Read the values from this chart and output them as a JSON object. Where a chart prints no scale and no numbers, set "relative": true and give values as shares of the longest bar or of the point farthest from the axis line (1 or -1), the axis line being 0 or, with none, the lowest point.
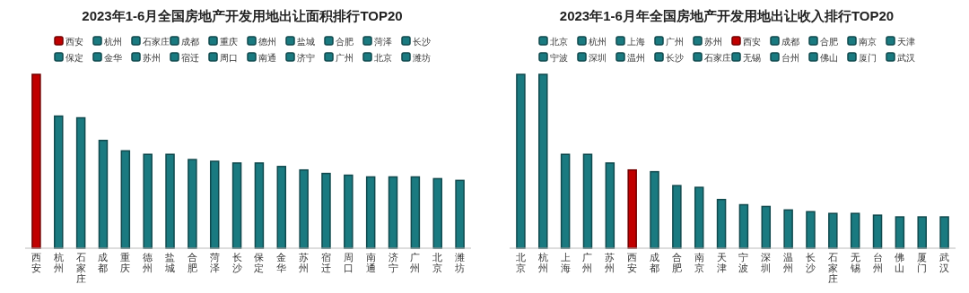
{
  "chart_data": [
    {
      "type": "bar",
      "title": "2023年1-6月全国房地产开发用地出让面积排行TOP20",
      "relative": true,
      "legend": "top",
      "stacked": true,
      "categories": [
        "西安",
        "杭州",
        "石家庄",
        "成都",
        "重庆",
        "德州",
        "盐城",
        "合肥",
        "菏泽",
        "长沙",
        "保定",
        "金华",
        "苏州",
        "宿迁",
        "周口",
        "南通",
        "济宁",
        "广州",
        "北京",
        "潍坊"
      ],
      "series": [
        {
          "name": "西安",
          "color": "#c00000",
          "values": [
            1,
            null,
            null,
            null,
            null,
            null,
            null,
            null,
            null,
            null,
            null,
            null,
            null,
            null,
            null,
            null,
            null,
            null,
            null,
            null
          ]
        },
        {
          "name": "杭州",
          "color": "#1a7a80",
          "values": [
            null,
            0.76,
            null,
            null,
            null,
            null,
            null,
            null,
            null,
            null,
            null,
            null,
            null,
            null,
            null,
            null,
            null,
            null,
            null,
            null
          ]
        },
        {
          "name": "石家庄",
          "color": "#1a7a80",
          "values": [
            null,
            null,
            0.75,
            null,
            null,
            null,
            null,
            null,
            null,
            null,
            null,
            null,
            null,
            null,
            null,
            null,
            null,
            null,
            null,
            null
          ]
        },
        {
          "name": "成都",
          "color": "#1a7a80",
          "values": [
            null,
            null,
            null,
            0.62,
            null,
            null,
            null,
            null,
            null,
            null,
            null,
            null,
            null,
            null,
            null,
            null,
            null,
            null,
            null,
            null
          ]
        },
        {
          "name": "重庆",
          "color": "#1a7a80",
          "values": [
            null,
            null,
            null,
            null,
            0.56,
            null,
            null,
            null,
            null,
            null,
            null,
            null,
            null,
            null,
            null,
            null,
            null,
            null,
            null,
            null
          ]
        },
        {
          "name": "德州",
          "color": "#1a7a80",
          "values": [
            null,
            null,
            null,
            null,
            null,
            0.54,
            null,
            null,
            null,
            null,
            null,
            null,
            null,
            null,
            null,
            null,
            null,
            null,
            null,
            null
          ]
        },
        {
          "name": "盐城",
          "color": "#1a7a80",
          "values": [
            null,
            null,
            null,
            null,
            null,
            null,
            0.54,
            null,
            null,
            null,
            null,
            null,
            null,
            null,
            null,
            null,
            null,
            null,
            null,
            null
          ]
        },
        {
          "name": "合肥",
          "color": "#1a7a80",
          "values": [
            null,
            null,
            null,
            null,
            null,
            null,
            null,
            0.51,
            null,
            null,
            null,
            null,
            null,
            null,
            null,
            null,
            null,
            null,
            null,
            null
          ]
        },
        {
          "name": "菏泽",
          "color": "#1a7a80",
          "values": [
            null,
            null,
            null,
            null,
            null,
            null,
            null,
            null,
            0.5,
            null,
            null,
            null,
            null,
            null,
            null,
            null,
            null,
            null,
            null,
            null
          ]
        },
        {
          "name": "长沙",
          "color": "#1a7a80",
          "values": [
            null,
            null,
            null,
            null,
            null,
            null,
            null,
            null,
            null,
            0.49,
            null,
            null,
            null,
            null,
            null,
            null,
            null,
            null,
            null,
            null
          ]
        },
        {
          "name": "保定",
          "color": "#1a7a80",
          "values": [
            null,
            null,
            null,
            null,
            null,
            null,
            null,
            null,
            null,
            null,
            0.49,
            null,
            null,
            null,
            null,
            null,
            null,
            null,
            null,
            null
          ]
        },
        {
          "name": "金华",
          "color": "#1a7a80",
          "values": [
            null,
            null,
            null,
            null,
            null,
            null,
            null,
            null,
            null,
            null,
            null,
            0.47,
            null,
            null,
            null,
            null,
            null,
            null,
            null,
            null
          ]
        },
        {
          "name": "苏州",
          "color": "#1a7a80",
          "values": [
            null,
            null,
            null,
            null,
            null,
            null,
            null,
            null,
            null,
            null,
            null,
            null,
            0.45,
            null,
            null,
            null,
            null,
            null,
            null,
            null
          ]
        },
        {
          "name": "宿迁",
          "color": "#1a7a80",
          "values": [
            null,
            null,
            null,
            null,
            null,
            null,
            null,
            null,
            null,
            null,
            null,
            null,
            null,
            0.43,
            null,
            null,
            null,
            null,
            null,
            null
          ]
        },
        {
          "name": "周口",
          "color": "#1a7a80",
          "values": [
            null,
            null,
            null,
            null,
            null,
            null,
            null,
            null,
            null,
            null,
            null,
            null,
            null,
            null,
            0.42,
            null,
            null,
            null,
            null,
            null
          ]
        },
        {
          "name": "南通",
          "color": "#1a7a80",
          "values": [
            null,
            null,
            null,
            null,
            null,
            null,
            null,
            null,
            null,
            null,
            null,
            null,
            null,
            null,
            null,
            0.41,
            null,
            null,
            null,
            null
          ]
        },
        {
          "name": "济宁",
          "color": "#1a7a80",
          "values": [
            null,
            null,
            null,
            null,
            null,
            null,
            null,
            null,
            null,
            null,
            null,
            null,
            null,
            null,
            null,
            null,
            0.41,
            null,
            null,
            null
          ]
        },
        {
          "name": "广州",
          "color": "#1a7a80",
          "values": [
            null,
            null,
            null,
            null,
            null,
            null,
            null,
            null,
            null,
            null,
            null,
            null,
            null,
            null,
            null,
            null,
            null,
            0.41,
            null,
            null
          ]
        },
        {
          "name": "北京",
          "color": "#1a7a80",
          "values": [
            null,
            null,
            null,
            null,
            null,
            null,
            null,
            null,
            null,
            null,
            null,
            null,
            null,
            null,
            null,
            null,
            null,
            null,
            0.4,
            null
          ]
        },
        {
          "name": "潍坊",
          "color": "#1a7a80",
          "values": [
            null,
            null,
            null,
            null,
            null,
            null,
            null,
            null,
            null,
            null,
            null,
            null,
            null,
            null,
            null,
            null,
            null,
            null,
            null,
            0.39
          ]
        }
      ]
    },
    {
      "type": "bar",
      "title": "2023年1-6月年全国房地产开发用地出让收入排行TOP20",
      "relative": true,
      "legend": "top",
      "stacked": true,
      "categories": [
        "北京",
        "杭州",
        "上海",
        "广州",
        "苏州",
        "西安",
        "成都",
        "合肥",
        "南京",
        "天津",
        "宁波",
        "深圳",
        "温州",
        "长沙",
        "石家庄",
        "无锡",
        "台州",
        "佛山",
        "厦门",
        "武汉"
      ],
      "series": [
        {
          "name": "北京",
          "color": "#1a7a80",
          "values": [
            1,
            null,
            null,
            null,
            null,
            null,
            null,
            null,
            null,
            null,
            null,
            null,
            null,
            null,
            null,
            null,
            null,
            null,
            null,
            null
          ]
        },
        {
          "name": "杭州",
          "color": "#1a7a80",
          "values": [
            null,
            1,
            null,
            null,
            null,
            null,
            null,
            null,
            null,
            null,
            null,
            null,
            null,
            null,
            null,
            null,
            null,
            null,
            null,
            null
          ]
        },
        {
          "name": "上海",
          "color": "#1a7a80",
          "values": [
            null,
            null,
            0.54,
            null,
            null,
            null,
            null,
            null,
            null,
            null,
            null,
            null,
            null,
            null,
            null,
            null,
            null,
            null,
            null,
            null
          ]
        },
        {
          "name": "广州",
          "color": "#1a7a80",
          "values": [
            null,
            null,
            null,
            0.54,
            null,
            null,
            null,
            null,
            null,
            null,
            null,
            null,
            null,
            null,
            null,
            null,
            null,
            null,
            null,
            null
          ]
        },
        {
          "name": "苏州",
          "color": "#1a7a80",
          "values": [
            null,
            null,
            null,
            null,
            0.49,
            null,
            null,
            null,
            null,
            null,
            null,
            null,
            null,
            null,
            null,
            null,
            null,
            null,
            null,
            null
          ]
        },
        {
          "name": "西安",
          "color": "#c00000",
          "values": [
            null,
            null,
            null,
            null,
            null,
            0.45,
            null,
            null,
            null,
            null,
            null,
            null,
            null,
            null,
            null,
            null,
            null,
            null,
            null,
            null
          ]
        },
        {
          "name": "成都",
          "color": "#1a7a80",
          "values": [
            null,
            null,
            null,
            null,
            null,
            null,
            0.44,
            null,
            null,
            null,
            null,
            null,
            null,
            null,
            null,
            null,
            null,
            null,
            null,
            null
          ]
        },
        {
          "name": "合肥",
          "color": "#1a7a80",
          "values": [
            null,
            null,
            null,
            null,
            null,
            null,
            null,
            0.36,
            null,
            null,
            null,
            null,
            null,
            null,
            null,
            null,
            null,
            null,
            null,
            null
          ]
        },
        {
          "name": "南京",
          "color": "#1a7a80",
          "values": [
            null,
            null,
            null,
            null,
            null,
            null,
            null,
            null,
            0.35,
            null,
            null,
            null,
            null,
            null,
            null,
            null,
            null,
            null,
            null,
            null
          ]
        },
        {
          "name": "天津",
          "color": "#1a7a80",
          "values": [
            null,
            null,
            null,
            null,
            null,
            null,
            null,
            null,
            null,
            0.28,
            null,
            null,
            null,
            null,
            null,
            null,
            null,
            null,
            null,
            null
          ]
        },
        {
          "name": "宁波",
          "color": "#1a7a80",
          "values": [
            null,
            null,
            null,
            null,
            null,
            null,
            null,
            null,
            null,
            null,
            0.25,
            null,
            null,
            null,
            null,
            null,
            null,
            null,
            null,
            null
          ]
        },
        {
          "name": "深圳",
          "color": "#1a7a80",
          "values": [
            null,
            null,
            null,
            null,
            null,
            null,
            null,
            null,
            null,
            null,
            null,
            0.24,
            null,
            null,
            null,
            null,
            null,
            null,
            null,
            null
          ]
        },
        {
          "name": "温州",
          "color": "#1a7a80",
          "values": [
            null,
            null,
            null,
            null,
            null,
            null,
            null,
            null,
            null,
            null,
            null,
            null,
            0.22,
            null,
            null,
            null,
            null,
            null,
            null,
            null
          ]
        },
        {
          "name": "长沙",
          "color": "#1a7a80",
          "values": [
            null,
            null,
            null,
            null,
            null,
            null,
            null,
            null,
            null,
            null,
            null,
            null,
            null,
            0.21,
            null,
            null,
            null,
            null,
            null,
            null
          ]
        },
        {
          "name": "石家庄",
          "color": "#1a7a80",
          "values": [
            null,
            null,
            null,
            null,
            null,
            null,
            null,
            null,
            null,
            null,
            null,
            null,
            null,
            null,
            0.2,
            null,
            null,
            null,
            null,
            null
          ]
        },
        {
          "name": "无锡",
          "color": "#1a7a80",
          "values": [
            null,
            null,
            null,
            null,
            null,
            null,
            null,
            null,
            null,
            null,
            null,
            null,
            null,
            null,
            null,
            0.2,
            null,
            null,
            null,
            null
          ]
        },
        {
          "name": "台州",
          "color": "#1a7a80",
          "values": [
            null,
            null,
            null,
            null,
            null,
            null,
            null,
            null,
            null,
            null,
            null,
            null,
            null,
            null,
            null,
            null,
            0.19,
            null,
            null,
            null
          ]
        },
        {
          "name": "佛山",
          "color": "#1a7a80",
          "values": [
            null,
            null,
            null,
            null,
            null,
            null,
            null,
            null,
            null,
            null,
            null,
            null,
            null,
            null,
            null,
            null,
            null,
            0.18,
            null,
            null
          ]
        },
        {
          "name": "厦门",
          "color": "#1a7a80",
          "values": [
            null,
            null,
            null,
            null,
            null,
            null,
            null,
            null,
            null,
            null,
            null,
            null,
            null,
            null,
            null,
            null,
            null,
            null,
            0.18,
            null
          ]
        },
        {
          "name": "武汉",
          "color": "#1a7a80",
          "values": [
            null,
            null,
            null,
            null,
            null,
            null,
            null,
            null,
            null,
            null,
            null,
            null,
            null,
            null,
            null,
            null,
            null,
            null,
            null,
            0.18
          ]
        }
      ]
    }
  ]
}
